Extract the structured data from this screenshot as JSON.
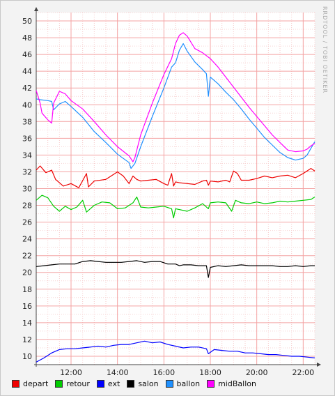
{
  "chart_data": {
    "type": "line",
    "title": "",
    "xlabel": "",
    "ylabel": "",
    "watermark": "RRDTOOL / TOBI OETIKER",
    "xlim": [
      "10:30",
      "22:30"
    ],
    "ylim": [
      9,
      51
    ],
    "y_ticks": [
      10,
      12,
      14,
      16,
      18,
      20,
      22,
      24,
      26,
      28,
      30,
      32,
      34,
      36,
      38,
      40,
      42,
      44,
      46,
      48,
      50
    ],
    "x_ticks": [
      "12:00",
      "14:00",
      "16:00",
      "18:00",
      "20:00",
      "22:00"
    ],
    "grid": true,
    "legend_position": "bottom",
    "series": [
      {
        "name": "depart",
        "color": "#ee0000",
        "x": [
          "10:30",
          "10:40",
          "10:55",
          "11:10",
          "11:20",
          "11:40",
          "12:00",
          "12:20",
          "12:40",
          "12:45",
          "13:00",
          "13:30",
          "14:00",
          "14:15",
          "14:30",
          "14:40",
          "14:50",
          "15:00",
          "15:20",
          "15:40",
          "16:00",
          "16:10",
          "16:20",
          "16:25",
          "16:30",
          "16:40",
          "17:00",
          "17:20",
          "17:40",
          "17:50",
          "17:55",
          "18:00",
          "18:20",
          "18:40",
          "18:50",
          "19:00",
          "19:10",
          "19:20",
          "19:40",
          "20:00",
          "20:20",
          "20:40",
          "21:00",
          "21:20",
          "21:40",
          "22:00",
          "22:20",
          "22:30"
        ],
        "y": [
          32.2,
          32.7,
          31.9,
          32.2,
          31.1,
          30.3,
          30.6,
          30.1,
          31.8,
          30.2,
          30.9,
          31.1,
          32.0,
          31.5,
          30.6,
          31.5,
          31.1,
          30.9,
          31.0,
          31.1,
          30.6,
          30.4,
          31.8,
          30.3,
          30.8,
          30.7,
          30.6,
          30.5,
          30.9,
          31.0,
          30.4,
          30.9,
          30.8,
          31.0,
          30.8,
          32.1,
          31.8,
          31.0,
          31.0,
          31.2,
          31.5,
          31.3,
          31.5,
          31.6,
          31.3,
          31.8,
          32.4,
          32.1
        ]
      },
      {
        "name": "retour",
        "color": "#00cc00",
        "x": [
          "10:30",
          "10:45",
          "11:00",
          "11:15",
          "11:30",
          "11:45",
          "12:00",
          "12:15",
          "12:30",
          "12:40",
          "13:00",
          "13:20",
          "13:40",
          "14:00",
          "14:20",
          "14:40",
          "14:50",
          "15:00",
          "15:20",
          "15:40",
          "16:00",
          "16:20",
          "16:25",
          "16:30",
          "16:40",
          "17:00",
          "17:20",
          "17:40",
          "17:55",
          "18:00",
          "18:20",
          "18:40",
          "18:55",
          "19:05",
          "19:20",
          "19:40",
          "20:00",
          "20:20",
          "20:40",
          "21:00",
          "21:20",
          "21:40",
          "22:00",
          "22:20",
          "22:30"
        ],
        "y": [
          28.6,
          29.2,
          28.9,
          27.9,
          27.3,
          27.9,
          27.5,
          27.8,
          28.6,
          27.2,
          28.0,
          28.4,
          28.3,
          27.6,
          27.7,
          28.3,
          29.0,
          27.8,
          27.7,
          27.8,
          27.9,
          27.6,
          26.5,
          27.6,
          27.5,
          27.3,
          27.7,
          28.2,
          27.6,
          28.3,
          28.4,
          28.3,
          27.3,
          28.6,
          28.3,
          28.2,
          28.4,
          28.2,
          28.3,
          28.5,
          28.4,
          28.5,
          28.6,
          28.7,
          29.0
        ]
      },
      {
        "name": "ext",
        "color": "#0000ff",
        "x": [
          "10:30",
          "10:50",
          "11:10",
          "11:30",
          "11:50",
          "12:10",
          "12:30",
          "12:50",
          "13:10",
          "13:30",
          "13:50",
          "14:10",
          "14:30",
          "14:50",
          "15:10",
          "15:30",
          "15:50",
          "16:10",
          "16:30",
          "16:50",
          "17:10",
          "17:30",
          "17:50",
          "17:55",
          "18:10",
          "18:30",
          "18:50",
          "19:10",
          "19:30",
          "19:50",
          "20:10",
          "20:30",
          "20:50",
          "21:10",
          "21:30",
          "21:50",
          "22:10",
          "22:30"
        ],
        "y": [
          9.3,
          9.8,
          10.4,
          10.8,
          10.9,
          10.9,
          11.0,
          11.1,
          11.2,
          11.1,
          11.3,
          11.4,
          11.4,
          11.6,
          11.8,
          11.6,
          11.7,
          11.4,
          11.2,
          11.0,
          11.1,
          11.1,
          10.9,
          10.3,
          10.8,
          10.7,
          10.6,
          10.6,
          10.4,
          10.4,
          10.3,
          10.2,
          10.2,
          10.1,
          10.0,
          10.0,
          9.9,
          9.8
        ]
      },
      {
        "name": "salon",
        "color": "#000000",
        "x": [
          "10:30",
          "10:50",
          "11:10",
          "11:30",
          "11:50",
          "12:10",
          "12:30",
          "12:50",
          "13:10",
          "13:30",
          "13:50",
          "14:10",
          "14:30",
          "14:50",
          "15:10",
          "15:30",
          "15:50",
          "16:10",
          "16:30",
          "16:40",
          "16:50",
          "17:10",
          "17:30",
          "17:50",
          "17:55",
          "18:00",
          "18:20",
          "18:40",
          "19:00",
          "19:20",
          "19:40",
          "20:00",
          "20:20",
          "20:40",
          "21:00",
          "21:20",
          "21:40",
          "22:00",
          "22:20",
          "22:30"
        ],
        "y": [
          20.7,
          20.8,
          20.9,
          21.0,
          21.0,
          21.0,
          21.3,
          21.4,
          21.3,
          21.2,
          21.2,
          21.2,
          21.3,
          21.4,
          21.2,
          21.3,
          21.3,
          21.0,
          21.0,
          20.8,
          20.9,
          20.9,
          20.8,
          20.8,
          19.4,
          20.6,
          20.8,
          20.7,
          20.8,
          20.9,
          20.8,
          20.8,
          20.8,
          20.8,
          20.7,
          20.7,
          20.8,
          20.7,
          20.8,
          20.8
        ]
      },
      {
        "name": "ballon",
        "color": "#1e90ff",
        "x": [
          "10:30",
          "10:40",
          "11:00",
          "11:10",
          "11:15",
          "11:30",
          "11:45",
          "12:00",
          "12:30",
          "13:00",
          "13:30",
          "14:00",
          "14:30",
          "14:35",
          "14:45",
          "15:00",
          "15:30",
          "16:00",
          "16:20",
          "16:30",
          "16:40",
          "16:50",
          "17:00",
          "17:20",
          "17:40",
          "17:50",
          "17:55",
          "18:00",
          "18:20",
          "18:40",
          "19:00",
          "19:20",
          "19:40",
          "20:00",
          "20:20",
          "20:40",
          "21:00",
          "21:20",
          "21:40",
          "22:00",
          "22:10",
          "22:20",
          "22:30"
        ],
        "y": [
          40.7,
          40.6,
          40.5,
          40.4,
          39.4,
          40.1,
          40.4,
          39.8,
          38.5,
          36.8,
          35.5,
          34.1,
          33.1,
          32.4,
          33.0,
          35.0,
          38.6,
          42.0,
          44.5,
          45.0,
          46.5,
          47.3,
          46.4,
          45.1,
          44.2,
          43.7,
          41.0,
          43.3,
          42.5,
          41.5,
          40.6,
          39.5,
          38.3,
          37.2,
          36.1,
          35.2,
          34.3,
          33.7,
          33.4,
          33.6,
          34.0,
          34.8,
          35.6
        ]
      },
      {
        "name": "midBallon",
        "color": "#ff00ff",
        "x": [
          "10:30",
          "10:40",
          "10:45",
          "11:00",
          "11:10",
          "11:15",
          "11:30",
          "11:45",
          "12:00",
          "12:30",
          "13:00",
          "13:30",
          "14:00",
          "14:30",
          "14:40",
          "14:45",
          "15:00",
          "15:30",
          "16:00",
          "16:20",
          "16:30",
          "16:40",
          "16:50",
          "17:00",
          "17:20",
          "17:40",
          "18:00",
          "18:20",
          "18:40",
          "19:00",
          "19:20",
          "19:40",
          "20:00",
          "20:20",
          "20:40",
          "21:00",
          "21:20",
          "21:40",
          "22:00",
          "22:10",
          "22:20",
          "22:30"
        ],
        "y": [
          41.7,
          40.2,
          39.0,
          38.2,
          37.8,
          40.2,
          41.6,
          41.3,
          40.5,
          39.5,
          38.0,
          36.4,
          35.0,
          33.9,
          33.2,
          33.7,
          36.4,
          40.2,
          43.6,
          45.5,
          47.3,
          48.3,
          48.6,
          48.2,
          46.7,
          46.2,
          45.5,
          44.5,
          43.3,
          42.1,
          40.9,
          39.7,
          38.6,
          37.5,
          36.4,
          35.5,
          34.6,
          34.4,
          34.5,
          34.7,
          35.1,
          35.4
        ]
      }
    ]
  }
}
